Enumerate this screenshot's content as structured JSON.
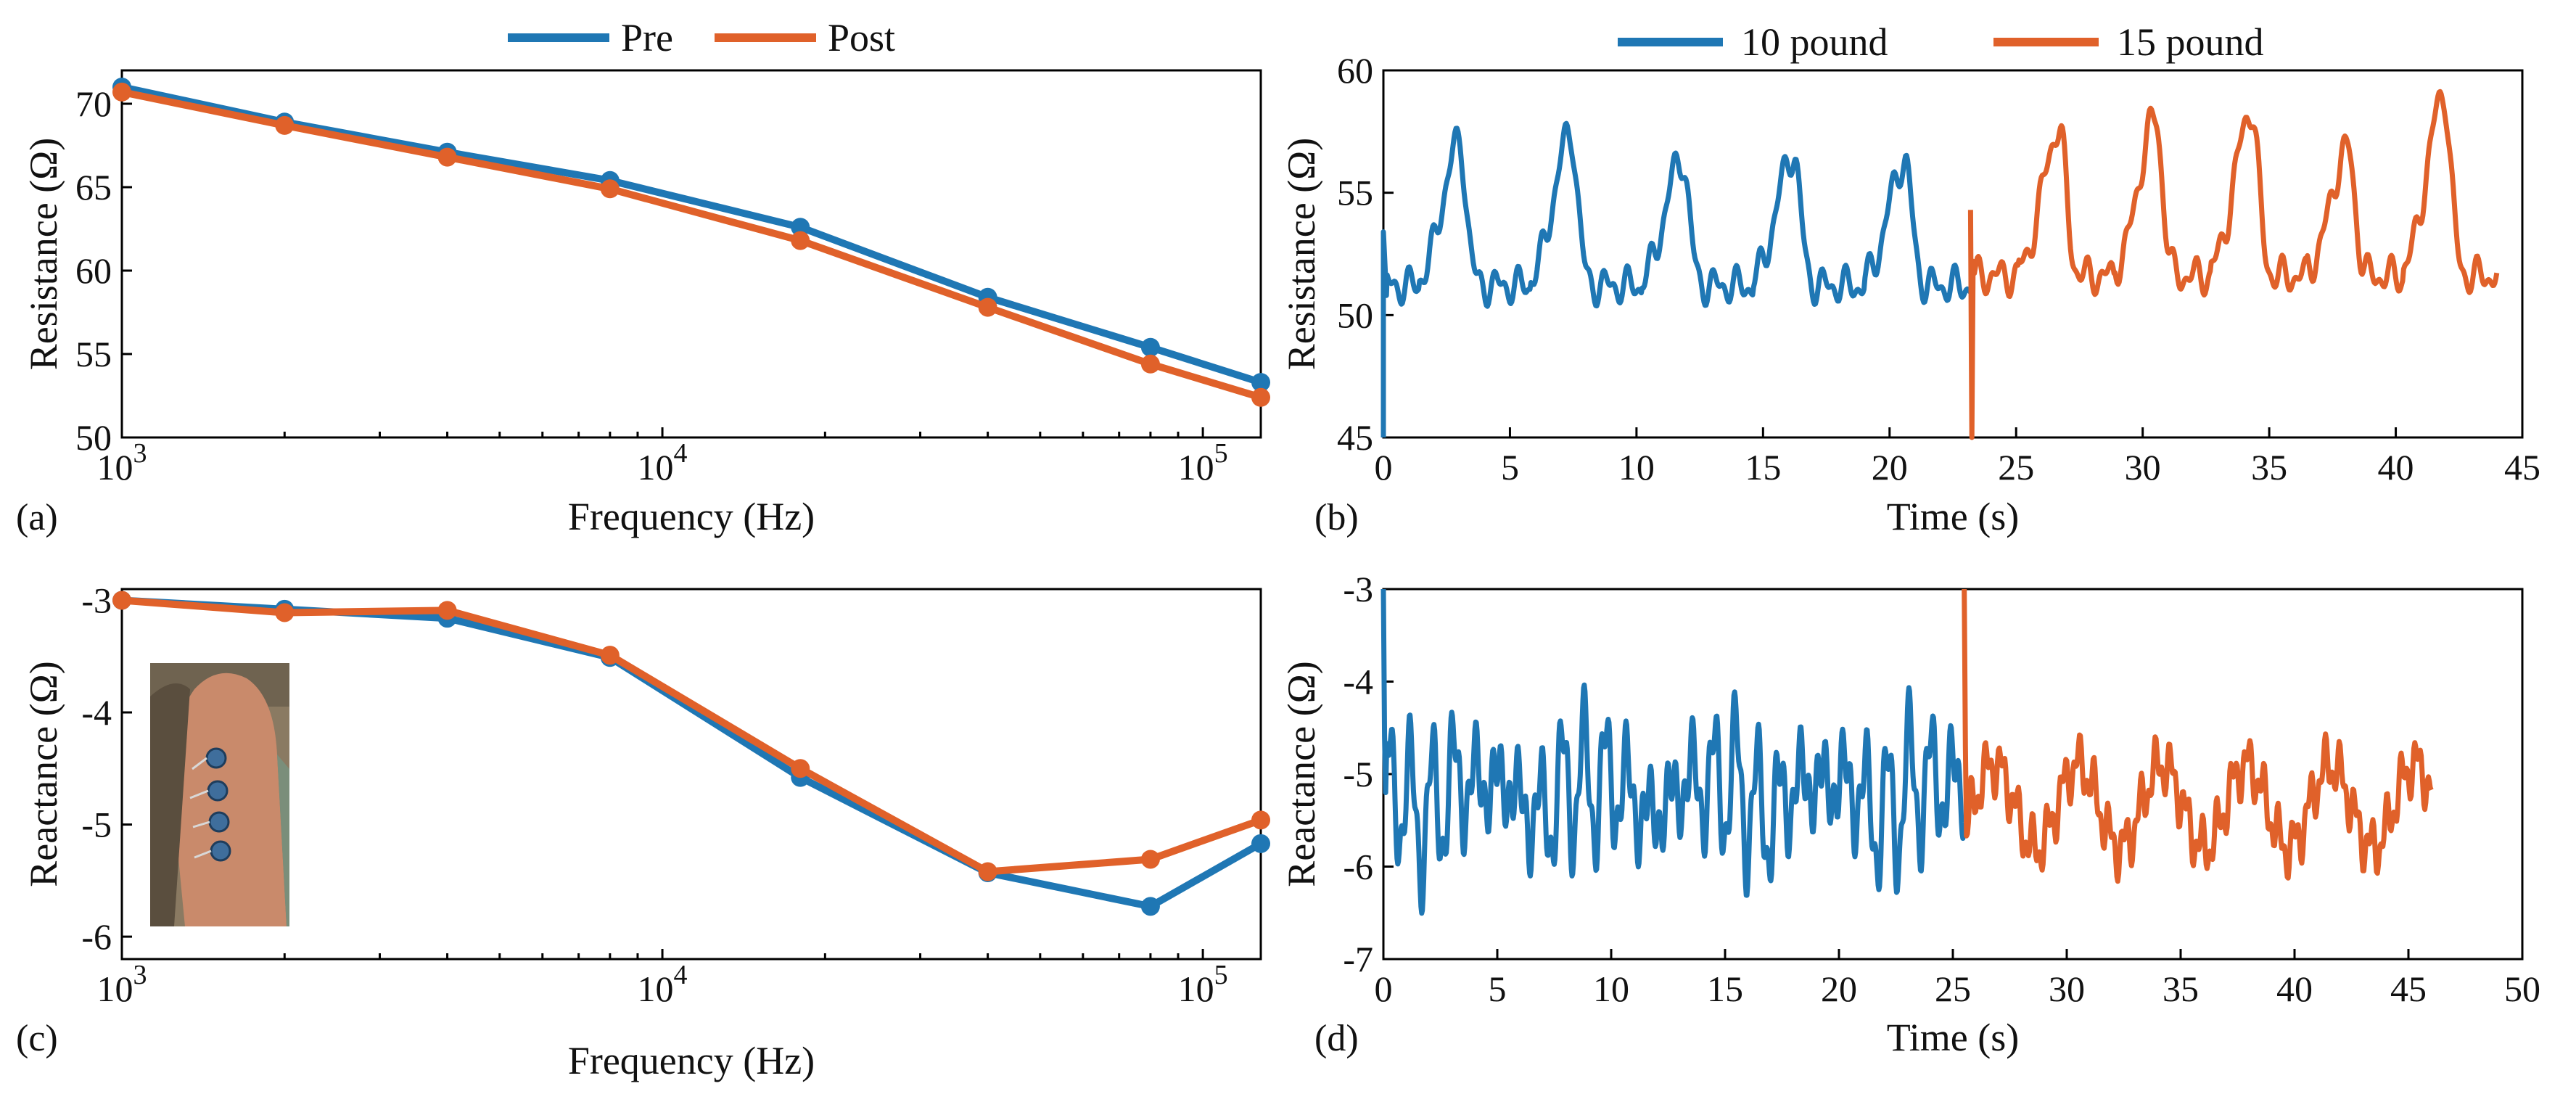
{
  "colors": {
    "blue": "#1f77b4",
    "orange": "#e0612a"
  },
  "chart_data": [
    {
      "panel": "(a)",
      "type": "line",
      "xscale": "log",
      "xlabel": "Frequency (Hz)",
      "ylabel": "Resistance (Ω)",
      "xlim": [
        1000,
        128000
      ],
      "ylim": [
        50,
        72
      ],
      "xticks": [
        {
          "value": 1000,
          "base": "10",
          "exp": "3"
        },
        {
          "value": 10000,
          "base": "10",
          "exp": "4"
        },
        {
          "value": 100000,
          "base": "10",
          "exp": "5"
        }
      ],
      "yticks": [
        50,
        55,
        60,
        65,
        70
      ],
      "x": [
        1000,
        2000,
        4000,
        8000,
        18000,
        40000,
        80000,
        128000
      ],
      "series": [
        {
          "name": "Pre",
          "color": "#1f77b4",
          "values": [
            71.0,
            68.9,
            67.1,
            65.4,
            62.6,
            58.4,
            55.4,
            53.3
          ]
        },
        {
          "name": "Post",
          "color": "#e0612a",
          "values": [
            70.7,
            68.7,
            66.8,
            64.9,
            61.8,
            57.8,
            54.4,
            52.4
          ]
        }
      ],
      "legend": "top-center"
    },
    {
      "panel": "(b)",
      "type": "line",
      "xlabel": "Time (s)",
      "ylabel": "Resistance (Ω)",
      "xlim": [
        0,
        45
      ],
      "ylim": [
        45,
        60
      ],
      "xticks": [
        0,
        5,
        10,
        15,
        20,
        25,
        30,
        35,
        40,
        45
      ],
      "yticks": [
        45,
        50,
        55,
        60
      ],
      "series": [
        {
          "name": "10 pound",
          "color": "#1f77b4",
          "t_start": 0,
          "t_end": 23.2,
          "base": 51.2,
          "period": 4.4,
          "first_peak": 3.0,
          "peaks": [
            57.0,
            57.4,
            56.4,
            56.6,
            56.3,
            52.5
          ]
        },
        {
          "name": "15 pound",
          "color": "#e0612a",
          "t_start": 23.2,
          "t_end": 44.0,
          "base": 51.6,
          "period": 3.8,
          "first_peak": 26.7,
          "peaks": [
            57.6,
            58.0,
            58.4,
            56.8,
            59.0,
            52.8
          ]
        }
      ],
      "legend": "top-center"
    },
    {
      "panel": "(c)",
      "type": "line",
      "xscale": "log",
      "xlabel": "Frequency (Hz)",
      "ylabel": "Reactance (Ω)",
      "xlim": [
        1000,
        128000
      ],
      "ylim": [
        -6.2,
        -2.9
      ],
      "xticks": [
        {
          "value": 1000,
          "base": "10",
          "exp": "3"
        },
        {
          "value": 10000,
          "base": "10",
          "exp": "4"
        },
        {
          "value": 100000,
          "base": "10",
          "exp": "5"
        }
      ],
      "yticks": [
        -6,
        -5,
        -4,
        -3
      ],
      "x": [
        1000,
        2000,
        4000,
        8000,
        18000,
        40000,
        80000,
        128000
      ],
      "series": [
        {
          "name": "Pre",
          "color": "#1f77b4",
          "values": [
            -3.0,
            -3.08,
            -3.16,
            -3.51,
            -4.58,
            -5.43,
            -5.73,
            -5.17
          ]
        },
        {
          "name": "Post",
          "color": "#e0612a",
          "values": [
            -3.0,
            -3.11,
            -3.09,
            -3.49,
            -4.5,
            -5.42,
            -5.31,
            -4.96
          ]
        }
      ]
    },
    {
      "panel": "(d)",
      "type": "line",
      "xlabel": "Time (s)",
      "ylabel": "Reactance (Ω)",
      "xlim": [
        0,
        50
      ],
      "ylim": [
        -7,
        -3
      ],
      "xticks": [
        0,
        5,
        10,
        15,
        20,
        25,
        30,
        35,
        40,
        45,
        50
      ],
      "yticks": [
        -7,
        -6,
        -5,
        -4,
        -3
      ],
      "series": [
        {
          "name": "10 pound",
          "color": "#1f77b4",
          "t_start": 0,
          "t_end": 25.5,
          "center": -5.1,
          "amplitude": 0.75
        },
        {
          "name": "15 pound",
          "color": "#e0612a",
          "t_start": 25.5,
          "t_end": 46.0,
          "center": -5.35,
          "amplitude": 0.45
        }
      ]
    }
  ]
}
